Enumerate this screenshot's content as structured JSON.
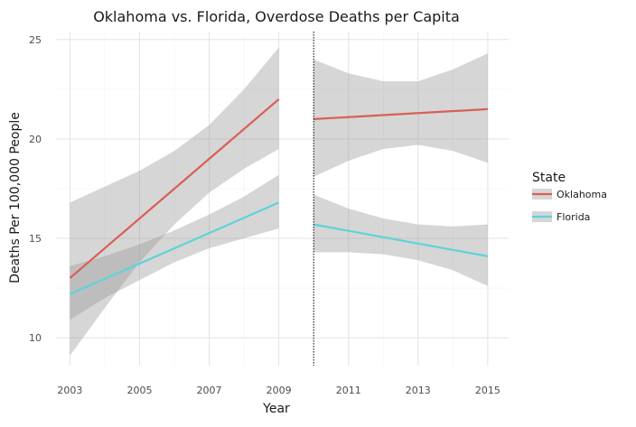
{
  "chart_data": {
    "type": "line",
    "title": "Oklahoma vs. Florida, Overdose Deaths per Capita",
    "xlabel": "Year",
    "ylabel": "Deaths Per 100,000 People",
    "xlim": [
      2002.6,
      2015.6
    ],
    "ylim": [
      8.6,
      25.4
    ],
    "x_ticks": [
      2003,
      2005,
      2007,
      2009,
      2011,
      2013,
      2015
    ],
    "y_ticks": [
      10,
      15,
      20,
      25
    ],
    "grid": true,
    "policy_line_x": 2010,
    "legend": {
      "title": "State",
      "position": "right",
      "entries": [
        "Oklahoma",
        "Florida"
      ]
    },
    "series": [
      {
        "name": "Oklahoma",
        "color": "#d95f55",
        "segments": [
          {
            "x": [
              2003,
              2009
            ],
            "y": [
              13.0,
              22.0
            ],
            "band_x": [
              2003,
              2004,
              2005,
              2006,
              2007,
              2008,
              2009
            ],
            "band_upper": [
              16.8,
              17.6,
              18.4,
              19.4,
              20.7,
              22.5,
              24.6
            ],
            "band_lower": [
              9.1,
              11.5,
              13.8,
              15.7,
              17.3,
              18.5,
              19.5
            ]
          },
          {
            "x": [
              2010,
              2015
            ],
            "y": [
              21.0,
              21.5
            ],
            "band_x": [
              2010,
              2011,
              2012,
              2013,
              2014,
              2015
            ],
            "band_upper": [
              24.0,
              23.3,
              22.9,
              22.9,
              23.5,
              24.3
            ],
            "band_lower": [
              18.1,
              18.9,
              19.5,
              19.7,
              19.4,
              18.8
            ]
          }
        ]
      },
      {
        "name": "Florida",
        "color": "#5ed3d8",
        "segments": [
          {
            "x": [
              2003,
              2009
            ],
            "y": [
              12.2,
              16.8
            ],
            "band_x": [
              2003,
              2004,
              2005,
              2006,
              2007,
              2008,
              2009
            ],
            "band_upper": [
              13.6,
              14.1,
              14.7,
              15.4,
              16.2,
              17.1,
              18.2
            ],
            "band_lower": [
              10.9,
              12.0,
              12.9,
              13.8,
              14.5,
              15.0,
              15.5
            ]
          },
          {
            "x": [
              2010,
              2015
            ],
            "y": [
              15.7,
              14.1
            ],
            "band_x": [
              2010,
              2011,
              2012,
              2013,
              2014,
              2015
            ],
            "band_upper": [
              17.2,
              16.5,
              16.0,
              15.7,
              15.6,
              15.7
            ],
            "band_lower": [
              14.3,
              14.3,
              14.2,
              13.9,
              13.4,
              12.6
            ]
          }
        ]
      }
    ]
  }
}
